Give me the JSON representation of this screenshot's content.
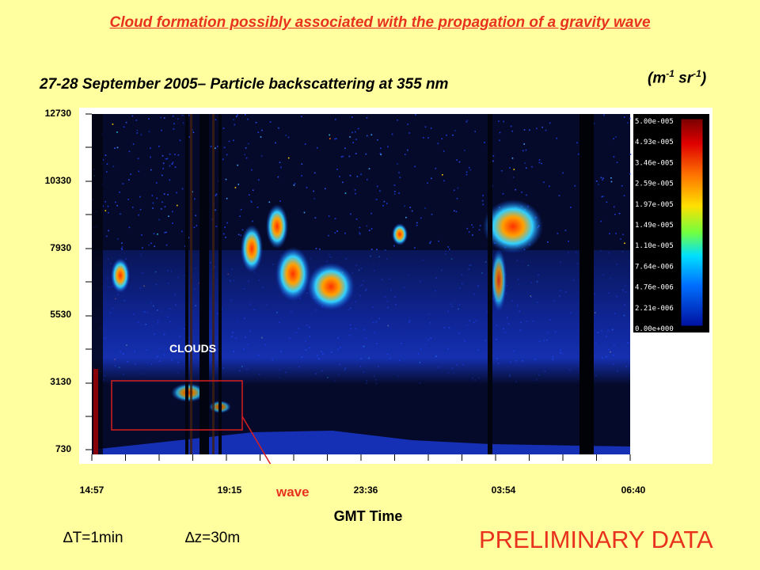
{
  "title": "Cloud formation possibly associated with the propagation of a gravity wave",
  "subtitle": "27-28 September 2005– Particle backscattering at 355 nm",
  "units": {
    "base_m": "(m",
    "exp_m": "-1",
    "base_sr": " sr",
    "exp_sr": "-1",
    "close": ")"
  },
  "annotations": {
    "clouds": "CLOUDS",
    "wave": "wave",
    "delta_t": "∆T=1min",
    "delta_z": "∆z=30m",
    "preliminary": "PRELIMINARY DATA"
  },
  "chart_data": {
    "type": "heatmap",
    "title": "27-28 September 2005– Particle backscattering at 355 nm",
    "xlabel": "GMT Time",
    "ylabel": "",
    "x_ticks": [
      "14:57",
      "19:15",
      "23:36",
      "03:54",
      "06:40"
    ],
    "y_ticks": [
      "730",
      "3130",
      "5530",
      "7930",
      "10330",
      "12730"
    ],
    "ylim": [
      730,
      12730
    ],
    "colorbar": {
      "unit": "(m-1 sr-1)",
      "labels": [
        "5.00e-005",
        "4.93e-005",
        "3.46e-005",
        "2.59e-005",
        "1.97e-005",
        "1.49e-005",
        "1.10e-005",
        "7.64e-006",
        "4.76e-006",
        "2.21e-006",
        "0.00e+000"
      ]
    },
    "colors": {
      "background": "#ffffa0",
      "plot_bg": "#050a2a",
      "accent": "#e8321e"
    }
  }
}
